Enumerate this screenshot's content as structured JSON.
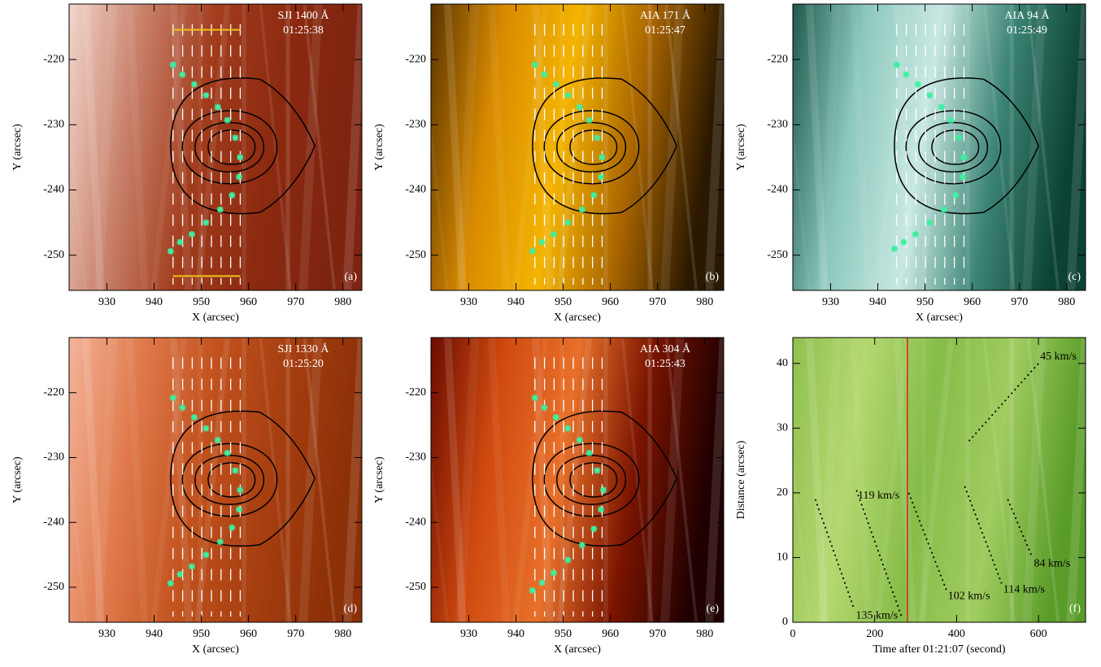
{
  "chart_data": [
    {
      "type": "image",
      "label": "(a)",
      "title": [
        "SJI 1400 Å",
        "01:25:38"
      ],
      "xlabel": "X (arcsec)",
      "ylabel": "Y (arcsec)",
      "xlim": [
        922,
        984
      ],
      "ylim": [
        -255.4,
        -211.5
      ],
      "xticks": [
        930,
        940,
        950,
        960,
        970,
        980
      ],
      "yticks": [
        -250,
        -240,
        -230,
        -220
      ],
      "colors": [
        "#f2d6cc",
        "#c9826c",
        "#a23c1c",
        "#8c2a10",
        "#7e2410"
      ],
      "series": [
        {
          "color": "#3cf0a0",
          "marker": "star",
          "x": [
            944,
            946,
            948.5,
            951,
            953.5,
            955.5,
            957.2,
            958.2,
            958,
            956.5,
            954,
            951,
            948,
            945.5,
            943.5
          ],
          "y": [
            -220.8,
            -222.3,
            -223.8,
            -225.5,
            -227.3,
            -229.3,
            -232,
            -235,
            -238,
            -240.8,
            -243,
            -245,
            -246.8,
            -248,
            -249.4
          ]
        }
      ]
    },
    {
      "type": "image",
      "label": "(b)",
      "title": [
        "AIA 171 Å",
        "01:25:47"
      ],
      "xlabel": "X (arcsec)",
      "ylabel": "Y (arcsec)",
      "xlim": [
        922,
        984
      ],
      "ylim": [
        -255.4,
        -211.5
      ],
      "xticks": [
        930,
        940,
        950,
        960,
        970,
        980
      ],
      "yticks": [
        -250,
        -240,
        -230,
        -220
      ],
      "colors": [
        "#5a3400",
        "#d88a00",
        "#f4b400",
        "#a86400",
        "#2a1800"
      ],
      "series": [
        {
          "color": "#3cf0a0",
          "marker": "star",
          "x": [
            944,
            946,
            948.5,
            951,
            953.5,
            955.5,
            957.2,
            958.2,
            958,
            956.5,
            954,
            951,
            948,
            945.5,
            943.5
          ],
          "y": [
            -220.8,
            -222.3,
            -223.8,
            -225.5,
            -227.3,
            -229.3,
            -232,
            -235,
            -238,
            -240.8,
            -243,
            -245,
            -246.8,
            -248,
            -249.4
          ]
        }
      ]
    },
    {
      "type": "image",
      "label": "(c)",
      "title": [
        "AIA 94 Å",
        "01:25:49"
      ],
      "xlabel": "X (arcsec)",
      "ylabel": "Y (arcsec)",
      "xlim": [
        922,
        984
      ],
      "ylim": [
        -255.4,
        -211.5
      ],
      "xticks": [
        930,
        940,
        950,
        960,
        970,
        980
      ],
      "yticks": [
        -250,
        -240,
        -230,
        -220
      ],
      "colors": [
        "#1e5a4c",
        "#8cc8bc",
        "#c8e8e2",
        "#3c8474",
        "#0c4234"
      ],
      "series": [
        {
          "color": "#3cf0a0",
          "marker": "star",
          "x": [
            944,
            946,
            948.5,
            951,
            953.5,
            955.5,
            957.2,
            958.2,
            958,
            956.5,
            954,
            951,
            948,
            945.5,
            943.5
          ],
          "y": [
            -220.8,
            -222.3,
            -223.8,
            -225.5,
            -227.3,
            -229.3,
            -232,
            -235,
            -238,
            -240.8,
            -243,
            -245,
            -246.8,
            -248,
            -249
          ]
        }
      ]
    },
    {
      "type": "image",
      "label": "(d)",
      "title": [
        "SJI 1330 Å",
        "01:25:20"
      ],
      "xlabel": "X (arcsec)",
      "ylabel": "Y (arcsec)",
      "xlim": [
        922,
        984
      ],
      "ylim": [
        -255.4,
        -211.5
      ],
      "xticks": [
        930,
        940,
        950,
        960,
        970,
        980
      ],
      "yticks": [
        -250,
        -240,
        -230,
        -220
      ],
      "colors": [
        "#f4b49a",
        "#e07a4c",
        "#c2521e",
        "#a63e10",
        "#8c3008"
      ],
      "series": [
        {
          "color": "#3cf0a0",
          "marker": "star",
          "x": [
            944,
            946,
            948.5,
            951,
            953.5,
            955.5,
            957.2,
            958.2,
            958,
            956.5,
            954,
            951,
            948,
            945.5,
            943.5
          ],
          "y": [
            -220.8,
            -222.3,
            -223.8,
            -225.5,
            -227.3,
            -229.3,
            -232,
            -235,
            -238,
            -240.8,
            -243,
            -245,
            -246.8,
            -248,
            -249.4
          ]
        }
      ]
    },
    {
      "type": "image",
      "label": "(e)",
      "title": [
        "AIA 304 Å",
        "01:25:43"
      ],
      "xlabel": "X (arcsec)",
      "ylabel": "Y (arcsec)",
      "xlim": [
        922,
        984
      ],
      "ylim": [
        -255.4,
        -211.5
      ],
      "xticks": [
        930,
        940,
        950,
        960,
        970,
        980
      ],
      "yticks": [
        -250,
        -240,
        -230,
        -220
      ],
      "colors": [
        "#6a0c00",
        "#d04a10",
        "#e8702a",
        "#7a1400",
        "#200000"
      ],
      "series": [
        {
          "color": "#3cf0a0",
          "marker": "star",
          "x": [
            944,
            946,
            948.5,
            951,
            953.5,
            955.5,
            957.2,
            958.5,
            958,
            956.5,
            954,
            951,
            948,
            945.5,
            943.5
          ],
          "y": [
            -220.8,
            -222.3,
            -223.8,
            -225.5,
            -227.3,
            -229.3,
            -232,
            -235,
            -238,
            -241,
            -243.5,
            -245.8,
            -247.8,
            -249.3,
            -250.5
          ]
        }
      ]
    },
    {
      "type": "image",
      "label": "(f)",
      "xlabel": "Time after 01:21:07 (second)",
      "ylabel": "Distance (arcsec)",
      "xlim": [
        0,
        715
      ],
      "ylim": [
        0,
        44
      ],
      "xticks": [
        0,
        200,
        400,
        600
      ],
      "yticks": [
        0,
        10,
        20,
        30,
        40
      ],
      "colors": [
        "#90c050",
        "#b4d870",
        "#86bc48",
        "#a0cc60",
        "#5a9c28"
      ],
      "vline": 280,
      "vline_color": "#e02020",
      "series": [
        {
          "name": "45 km/s",
          "color": "#000000",
          "linestyle": "dotted",
          "x": [
            430,
            600
          ],
          "y": [
            28,
            40
          ]
        },
        {
          "name": "119 km/s",
          "color": "#000000",
          "linestyle": "dotted",
          "x": [
            265,
            155
          ],
          "y": [
            1,
            20.5
          ]
        },
        {
          "name": "135 km/s",
          "color": "#000000",
          "linestyle": "dotted",
          "x": [
            55,
            150
          ],
          "y": [
            19,
            2
          ]
        },
        {
          "name": "102 km/s",
          "color": "#000000",
          "linestyle": "dotted",
          "x": [
            283,
            375
          ],
          "y": [
            20,
            5
          ]
        },
        {
          "name": "114 km/s",
          "color": "#000000",
          "linestyle": "dotted",
          "x": [
            420,
            510
          ],
          "y": [
            21,
            6
          ]
        },
        {
          "name": "84 km/s",
          "color": "#000000",
          "linestyle": "dotted",
          "x": [
            525,
            585
          ],
          "y": [
            19,
            10
          ]
        }
      ]
    }
  ]
}
